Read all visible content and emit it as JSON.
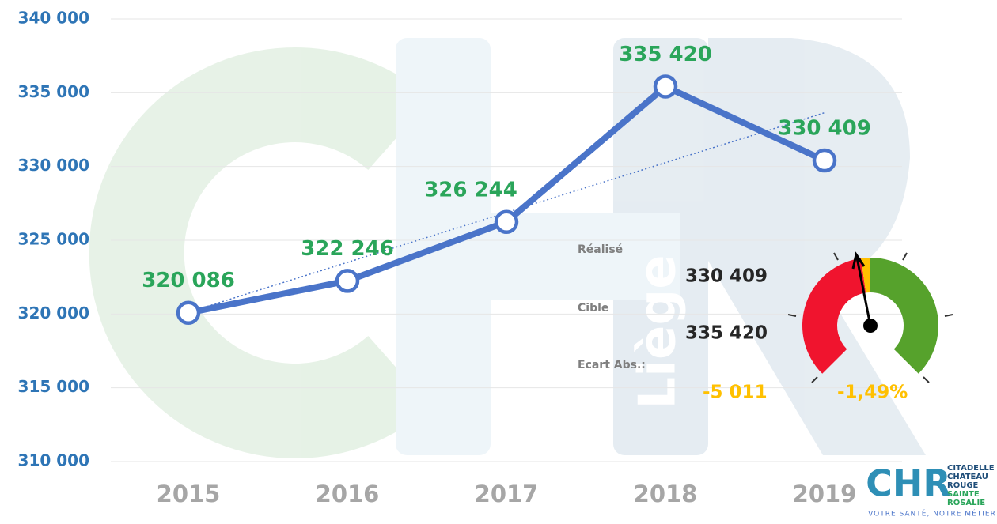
{
  "chart_data": {
    "type": "line",
    "categories": [
      "2015",
      "2016",
      "2017",
      "2018",
      "2019"
    ],
    "series": [
      {
        "color": "#4a74c9",
        "values": [
          320086,
          322246,
          326244,
          335420,
          330409
        ],
        "value_labels": [
          "320 086",
          "322 246",
          "326 244",
          "335 420",
          "330 409"
        ],
        "label_color": "#2aa55a"
      }
    ],
    "ylim": [
      310000,
      340000
    ],
    "yticks": [
      {
        "value": 310000,
        "label": "310 000"
      },
      {
        "value": 315000,
        "label": "315 000"
      },
      {
        "value": 320000,
        "label": "320 000"
      },
      {
        "value": 325000,
        "label": "325 000"
      },
      {
        "value": 330000,
        "label": "330 000"
      },
      {
        "value": 335000,
        "label": "335 000"
      },
      {
        "value": 340000,
        "label": "340 000"
      }
    ],
    "grid": true,
    "trendline": true
  },
  "kpi": {
    "realise_label": "Réalisé",
    "realise": "330 409",
    "cible_label": "Cible",
    "cible": "335 420",
    "ecart_label": "Ecart Abs.:",
    "ecart": "-5 011",
    "ecart_pct": "-1,49%"
  },
  "watermark": {
    "text": "Liège"
  },
  "logo": {
    "mark": "CHR",
    "lines": [
      "CITADELLE",
      "CHATEAU",
      "ROUGE",
      "SAINTE",
      "ROSALIE"
    ],
    "tagline": "VOTRE SANTÉ, NOTRE MÉTIER"
  }
}
